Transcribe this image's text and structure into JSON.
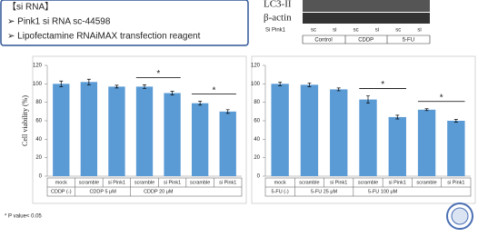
{
  "protocol": {
    "title": "【si RNA】",
    "items": [
      "➢ Pink1 si RNA sc-44598",
      "➢ Lipofectamine RNAiMAX transfection reagent"
    ]
  },
  "blot": {
    "bands": [
      "LC3-II",
      "β-actin"
    ],
    "row_label": "Si Pink1",
    "lanes": [
      "sc",
      "si",
      "sc",
      "si",
      "sc",
      "si"
    ],
    "groups": [
      "Control",
      "CDDP",
      "5-FU"
    ]
  },
  "chart_data": [
    {
      "type": "bar",
      "y_label": "Cell viability (%)",
      "categories": [
        "mock",
        "scramble",
        "si Pink1",
        "scramble",
        "si Pink1",
        "scramble",
        "si Pink1"
      ],
      "groups": [
        "CDDP (-)",
        "CDDP 5 μM",
        "CDDP 20 μM"
      ],
      "values": [
        100,
        102,
        97,
        97,
        90,
        79,
        70
      ],
      "errors": [
        3,
        3,
        1.5,
        2,
        2,
        2,
        2
      ],
      "color": "#5b9bd5",
      "ylim": [
        0,
        120
      ],
      "yticks": [
        0,
        20,
        40,
        60,
        80,
        100,
        120
      ],
      "annotations": [
        "*",
        "*"
      ]
    },
    {
      "type": "bar",
      "categories": [
        "mock",
        "scramble",
        "si Pink1",
        "scramble",
        "si Pink1",
        "scramble",
        "si Pink1"
      ],
      "groups": [
        "5-FU (-)",
        "5-FU 25 μM",
        "5-FU 100 μM"
      ],
      "values": [
        100,
        99,
        94,
        83,
        64,
        72,
        60
      ],
      "errors": [
        2,
        2,
        1.5,
        4,
        2,
        1,
        1.5
      ],
      "color": "#5b9bd5",
      "ylim": [
        0,
        120
      ],
      "yticks": [
        0,
        20,
        40,
        60,
        80,
        100,
        120
      ],
      "annotations": [
        "*",
        "*"
      ]
    }
  ],
  "footnote": "* P value< 0.05"
}
